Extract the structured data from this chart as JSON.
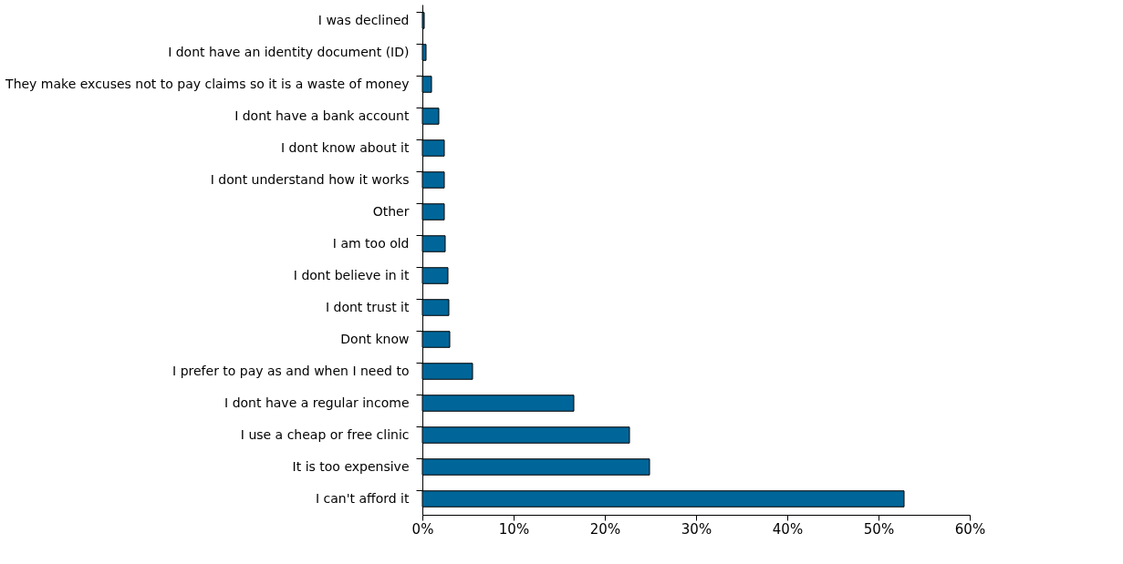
{
  "chart_data": {
    "type": "bar",
    "orientation": "horizontal",
    "categories": [
      "I was declined",
      "I dont have an identity document (ID)",
      "They make excuses not to pay claims so it is a waste of money",
      "I dont have a bank account",
      "I dont know about it",
      "I dont understand how it works",
      "Other",
      "I am too old",
      "I dont believe in it",
      "I dont trust it",
      "Dont know",
      "I prefer to pay as and when I need to",
      "I dont have a regular income",
      "I use a cheap or free clinic",
      "It is too expensive",
      "I can't afford it"
    ],
    "values": [
      0.2,
      0.4,
      1.0,
      1.8,
      2.4,
      2.4,
      2.4,
      2.5,
      2.8,
      2.9,
      3.0,
      5.5,
      16.6,
      22.7,
      24.9,
      52.8
    ],
    "color": "#006699",
    "xlim": [
      0,
      60
    ],
    "xticks": [
      {
        "value": 0,
        "label": "0%"
      },
      {
        "value": 10,
        "label": "10%"
      },
      {
        "value": 20,
        "label": "20%"
      },
      {
        "value": 30,
        "label": "30%"
      },
      {
        "value": 40,
        "label": "40%"
      },
      {
        "value": 50,
        "label": "50%"
      },
      {
        "value": 60,
        "label": "60%"
      }
    ],
    "grid": false
  }
}
